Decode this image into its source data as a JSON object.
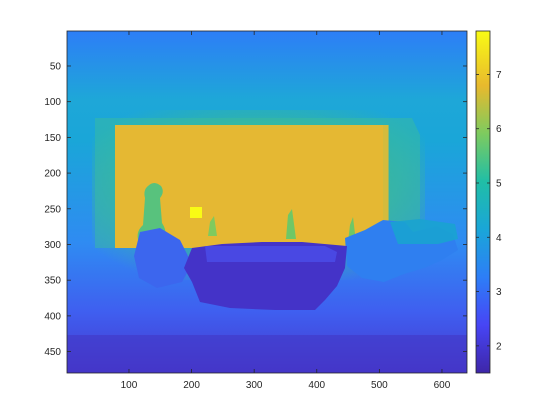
{
  "chart_data": {
    "type": "heatmap",
    "title": "",
    "xlabel": "",
    "ylabel": "",
    "x_range": [
      1,
      640
    ],
    "y_range": [
      1,
      480
    ],
    "y_reversed": true,
    "x_ticks": [
      100,
      200,
      300,
      400,
      500,
      600
    ],
    "y_ticks": [
      50,
      100,
      150,
      200,
      250,
      300,
      350,
      400,
      450
    ],
    "colorbar": {
      "range": [
        1.5,
        7.8
      ],
      "ticks": [
        2,
        3,
        4,
        5,
        6,
        7
      ],
      "colormap": "parula"
    },
    "grid": false,
    "regions": [
      {
        "name": "background",
        "value": 3.3
      },
      {
        "name": "back-wall",
        "value": 6.3,
        "x": [
          70,
          510
        ],
        "y": [
          125,
          310
        ]
      },
      {
        "name": "object-left",
        "value": 5.2,
        "x": [
          135,
          165
        ],
        "y": [
          213,
          260
        ]
      },
      {
        "name": "hotspot",
        "value": 7.7,
        "x": [
          200,
          215
        ],
        "y": [
          245,
          262
        ]
      },
      {
        "name": "foreground-object",
        "value": 2.0,
        "x": [
          185,
          350
        ],
        "y": [
          285,
          375
        ]
      },
      {
        "name": "right-clutter",
        "value": 3.0,
        "x": [
          340,
          560
        ],
        "y": [
          245,
          345
        ]
      }
    ]
  }
}
